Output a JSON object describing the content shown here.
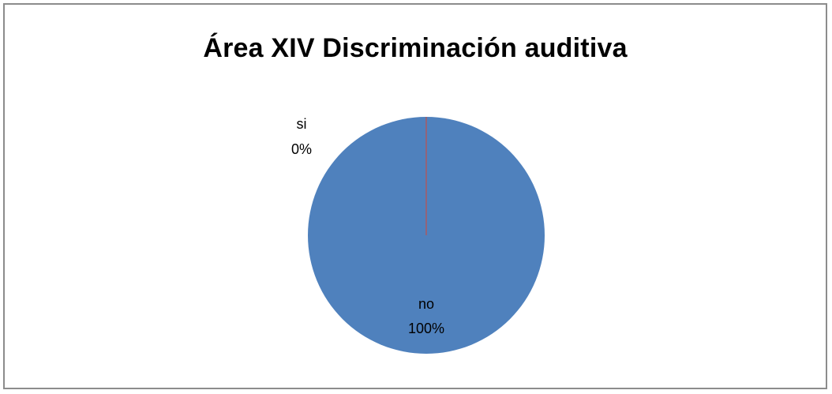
{
  "chart_data": {
    "type": "pie",
    "title": "Área XIV Discriminación auditiva",
    "categories": [
      "si",
      "no"
    ],
    "values": [
      0,
      100
    ],
    "data_labels": [
      {
        "name": "si",
        "value": "0%"
      },
      {
        "name": "no",
        "value": "100%"
      }
    ],
    "colors": {
      "no": "#4f81bd",
      "si": "#c0504d"
    },
    "legend": "none"
  }
}
